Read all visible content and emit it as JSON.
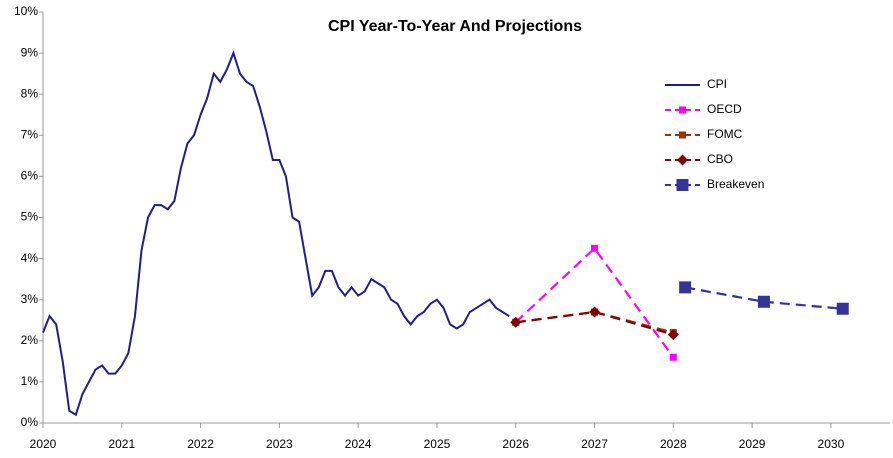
{
  "chart_data": {
    "type": "line",
    "title": "CPI Year-To-Year And Projections",
    "xlim": [
      2020,
      2030.75
    ],
    "xticks": [
      2020,
      2021,
      2022,
      2023,
      2024,
      2025,
      2026,
      2027,
      2028,
      2029,
      2030
    ],
    "ylim": [
      0,
      10
    ],
    "yticks": [
      {
        "value": 0,
        "label": "0%"
      },
      {
        "value": 1,
        "label": "1%"
      },
      {
        "value": 2,
        "label": "2%"
      },
      {
        "value": 3,
        "label": "3%"
      },
      {
        "value": 4,
        "label": "4%"
      },
      {
        "value": 5,
        "label": "5%"
      },
      {
        "value": 6,
        "label": "6%"
      },
      {
        "value": 7,
        "label": "7%"
      },
      {
        "value": 8,
        "label": "8%"
      },
      {
        "value": 9,
        "label": "9%"
      },
      {
        "value": 10,
        "label": "10%"
      }
    ],
    "grid": false,
    "legend": "upper right",
    "series": [
      {
        "name": "CPI",
        "color": "#1f1f8a",
        "marker": "none",
        "dashed": false,
        "x": [
          2020,
          2020.083,
          2020.167,
          2020.25,
          2020.333,
          2020.417,
          2020.5,
          2020.583,
          2020.667,
          2020.75,
          2020.833,
          2020.917,
          2021,
          2021.083,
          2021.167,
          2021.25,
          2021.333,
          2021.417,
          2021.5,
          2021.583,
          2021.667,
          2021.75,
          2021.833,
          2021.917,
          2022,
          2022.083,
          2022.167,
          2022.25,
          2022.333,
          2022.417,
          2022.5,
          2022.583,
          2022.667,
          2022.75,
          2022.833,
          2022.917,
          2023,
          2023.083,
          2023.167,
          2023.25,
          2023.333,
          2023.417,
          2023.5,
          2023.583,
          2023.667,
          2023.75,
          2023.833,
          2023.917,
          2024,
          2024.083,
          2024.167,
          2024.25,
          2024.333,
          2024.417,
          2024.5,
          2024.583,
          2024.667,
          2024.75,
          2024.833,
          2024.917,
          2025,
          2025.083,
          2025.167,
          2025.25,
          2025.333,
          2025.417,
          2025.5,
          2025.583,
          2025.667,
          2025.75,
          2025.833,
          2025.917
        ],
        "values": [
          2.2,
          2.6,
          2.4,
          1.5,
          0.3,
          0.2,
          0.7,
          1.0,
          1.3,
          1.4,
          1.2,
          1.2,
          1.4,
          1.7,
          2.6,
          4.2,
          5.0,
          5.3,
          5.3,
          5.2,
          5.4,
          6.2,
          6.8,
          7.0,
          7.5,
          7.9,
          8.5,
          8.3,
          8.6,
          9.0,
          8.5,
          8.3,
          8.2,
          7.7,
          7.1,
          6.4,
          6.4,
          6.0,
          5.0,
          4.9,
          4.0,
          3.1,
          3.3,
          3.7,
          3.7,
          3.3,
          3.1,
          3.3,
          3.1,
          3.2,
          3.5,
          3.4,
          3.3,
          3.0,
          2.9,
          2.6,
          2.4,
          2.6,
          2.7,
          2.9,
          3.0,
          2.8,
          2.4,
          2.3,
          2.4,
          2.7,
          2.8,
          2.9,
          3.0,
          2.8,
          2.7,
          2.6
        ]
      },
      {
        "name": "OECD",
        "color": "#ff00ff",
        "marker": "square",
        "dashed": true,
        "x": [
          2026,
          2027,
          2028
        ],
        "values": [
          2.45,
          4.25,
          1.6
        ]
      },
      {
        "name": "FOMC",
        "color": "#993300",
        "marker": "square",
        "dashed": true,
        "x": [
          2026,
          2027,
          2028
        ],
        "values": [
          2.45,
          2.7,
          2.2
        ]
      },
      {
        "name": "CBO",
        "color": "#800000",
        "marker": "diamond",
        "dashed": true,
        "x": [
          2026,
          2027,
          2028
        ],
        "values": [
          2.45,
          2.7,
          2.15
        ]
      },
      {
        "name": "Breakeven",
        "color": "#333399",
        "marker": "bigsquare",
        "dashed": true,
        "x": [
          2028.15,
          2029.15,
          2030.15
        ],
        "values": [
          3.3,
          2.95,
          2.78
        ]
      }
    ]
  }
}
